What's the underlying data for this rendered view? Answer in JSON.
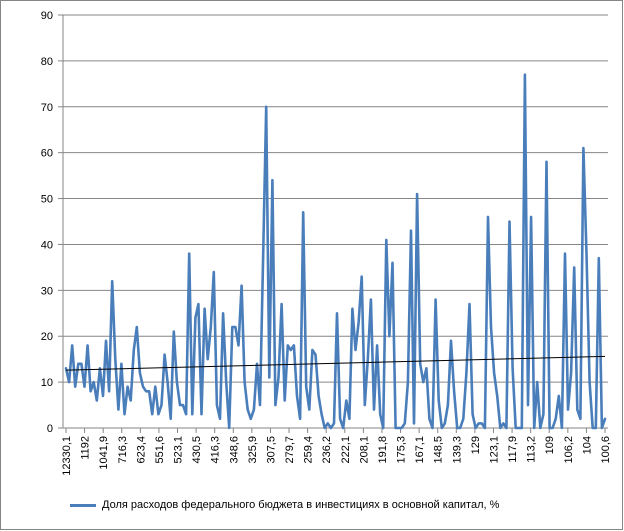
{
  "chart_data": {
    "type": "line",
    "title": "",
    "xlabel": "",
    "ylabel": "",
    "ylim": [
      0,
      90
    ],
    "yticks": [
      0,
      10,
      20,
      30,
      40,
      50,
      60,
      70,
      80,
      90
    ],
    "grid": "horizontal",
    "legend_position": "bottom",
    "x_tick_labels": [
      "12330,1",
      "1192",
      "1041,9",
      "716,3",
      "623,4",
      "551,6",
      "523,1",
      "430,5",
      "416,3",
      "348,6",
      "325,9",
      "307,5",
      "279,7",
      "259,4",
      "236,2",
      "222,1",
      "208,1",
      "191,8",
      "175,3",
      "167,1",
      "148,5",
      "139,3",
      "129",
      "123,1",
      "117,9",
      "113,2",
      "109",
      "106,2",
      "104",
      "100,6"
    ],
    "series": [
      {
        "name": "Доля расходов федерального бюджета в инвестициях в основной капитал, %",
        "color": "#4a7ebb",
        "values": [
          13,
          10,
          18,
          9,
          14,
          14,
          9,
          18,
          8,
          10,
          6,
          13,
          7,
          19,
          8,
          32,
          15,
          4,
          14,
          3,
          9,
          6,
          17,
          22,
          12,
          9,
          8,
          8,
          3,
          9,
          3,
          5,
          16,
          10,
          2,
          21,
          10,
          5,
          5,
          3,
          38,
          3,
          24,
          27,
          3,
          26,
          15,
          22,
          34,
          5,
          2,
          25,
          10,
          0,
          22,
          22,
          18,
          31,
          10,
          4,
          2,
          4,
          14,
          5,
          37,
          70,
          11,
          54,
          5,
          11,
          27,
          6,
          18,
          17,
          18,
          7,
          2,
          47,
          9,
          4,
          17,
          16,
          7,
          3,
          0,
          1,
          0,
          1,
          25,
          2,
          0,
          6,
          2,
          26,
          17,
          23,
          33,
          5,
          15,
          28,
          4,
          18,
          3,
          0,
          41,
          20,
          36,
          0,
          0,
          0,
          1,
          10,
          43,
          1,
          51,
          14,
          10,
          13,
          2,
          0,
          28,
          6,
          0,
          1,
          5,
          19,
          8,
          0,
          0,
          2,
          12,
          27,
          3,
          0,
          1,
          1,
          0,
          46,
          22,
          12,
          7,
          0,
          1,
          0,
          45,
          13,
          0,
          0,
          0,
          77,
          5,
          46,
          0,
          10,
          0,
          3,
          58,
          0,
          0,
          2,
          7,
          0,
          38,
          4,
          12,
          35,
          4,
          2,
          61,
          38,
          10,
          0,
          0,
          37,
          0,
          2
        ]
      }
    ],
    "trendline": {
      "type": "linear",
      "color": "#000000",
      "start": 12.6,
      "end": 15.6
    }
  }
}
